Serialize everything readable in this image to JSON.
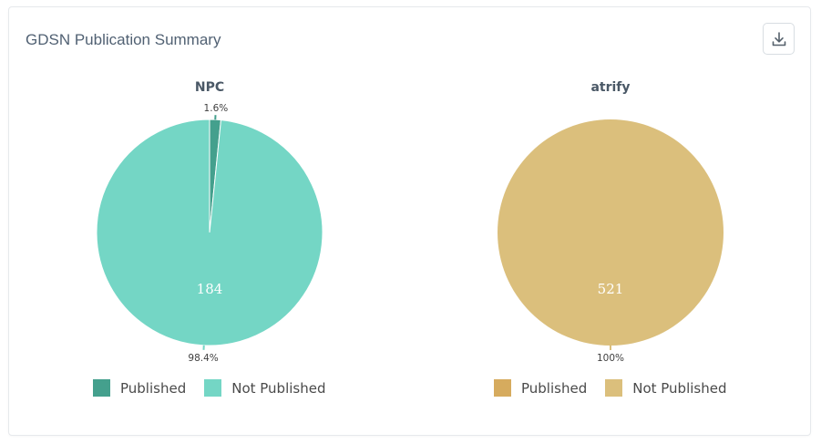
{
  "card": {
    "title": "GDSN Publication Summary",
    "download_icon": "download-icon"
  },
  "chart_data": [
    {
      "type": "pie",
      "title": "NPC",
      "slices": [
        {
          "label": "Published",
          "value": 3,
          "percent_label": "1.6%",
          "color": "#44a08d"
        },
        {
          "label": "Not Published",
          "value": 184,
          "percent_label": "98.4%",
          "color": "#74d6c5"
        }
      ],
      "center_value_label": "184",
      "legend": {
        "placement": "bottom",
        "entries": [
          "Published",
          "Not Published"
        ]
      }
    },
    {
      "type": "pie",
      "title": "atrify",
      "slices": [
        {
          "label": "Published",
          "value": 0,
          "percent_label": "",
          "color": "#d6ab5e"
        },
        {
          "label": "Not Published",
          "value": 521,
          "percent_label": "100%",
          "color": "#dbbf7c"
        }
      ],
      "center_value_label": "521",
      "legend": {
        "placement": "bottom",
        "entries": [
          "Published",
          "Not Published"
        ]
      }
    }
  ]
}
